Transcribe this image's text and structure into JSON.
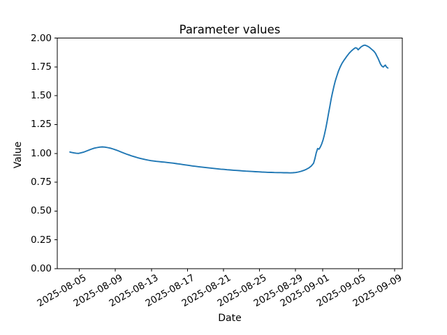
{
  "chart_data": {
    "type": "line",
    "title": "Parameter values",
    "xlabel": "Date",
    "ylabel": "Value",
    "x_unit": "days since 2025-08-01",
    "xlim": [
      1.55,
      39.85
    ],
    "ylim": [
      0.0,
      2.0
    ],
    "grid": false,
    "legend": null,
    "line_color": "#1f77b4",
    "x_ticks": [
      {
        "t": 4,
        "label": "2025-08-05"
      },
      {
        "t": 8,
        "label": "2025-08-09"
      },
      {
        "t": 12,
        "label": "2025-08-13"
      },
      {
        "t": 16,
        "label": "2025-08-17"
      },
      {
        "t": 20,
        "label": "2025-08-21"
      },
      {
        "t": 24,
        "label": "2025-08-25"
      },
      {
        "t": 28,
        "label": "2025-08-29"
      },
      {
        "t": 31,
        "label": "2025-09-01"
      },
      {
        "t": 35,
        "label": "2025-09-05"
      },
      {
        "t": 39,
        "label": "2025-09-09"
      }
    ],
    "y_ticks": [
      {
        "v": 0.0,
        "label": "0.00"
      },
      {
        "v": 0.25,
        "label": "0.25"
      },
      {
        "v": 0.5,
        "label": "0.50"
      },
      {
        "v": 0.75,
        "label": "0.75"
      },
      {
        "v": 1.0,
        "label": "1.00"
      },
      {
        "v": 1.25,
        "label": "1.25"
      },
      {
        "v": 1.5,
        "label": "1.50"
      },
      {
        "v": 1.75,
        "label": "1.75"
      },
      {
        "v": 2.0,
        "label": "2.00"
      }
    ],
    "series": [
      {
        "name": "parameter-values",
        "color": "#1f77b4",
        "line_width": 1.9,
        "points": [
          [
            2.95,
            1.012
          ],
          [
            3.15,
            1.008
          ],
          [
            3.4,
            1.004
          ],
          [
            3.65,
            1.001
          ],
          [
            3.9,
            1.0
          ],
          [
            4.15,
            1.004
          ],
          [
            4.45,
            1.01
          ],
          [
            4.75,
            1.019
          ],
          [
            5.05,
            1.028
          ],
          [
            5.35,
            1.037
          ],
          [
            5.65,
            1.045
          ],
          [
            5.95,
            1.05
          ],
          [
            6.25,
            1.054
          ],
          [
            6.55,
            1.056
          ],
          [
            6.85,
            1.054
          ],
          [
            7.15,
            1.05
          ],
          [
            7.45,
            1.045
          ],
          [
            7.75,
            1.038
          ],
          [
            8.05,
            1.03
          ],
          [
            8.35,
            1.021
          ],
          [
            8.65,
            1.011
          ],
          [
            8.95,
            1.002
          ],
          [
            9.25,
            0.993
          ],
          [
            9.55,
            0.985
          ],
          [
            9.85,
            0.977
          ],
          [
            10.15,
            0.97
          ],
          [
            10.45,
            0.963
          ],
          [
            10.75,
            0.957
          ],
          [
            11.05,
            0.951
          ],
          [
            11.35,
            0.946
          ],
          [
            11.65,
            0.941
          ],
          [
            11.95,
            0.937
          ],
          [
            12.25,
            0.934
          ],
          [
            12.55,
            0.931
          ],
          [
            12.85,
            0.928
          ],
          [
            13.15,
            0.926
          ],
          [
            13.45,
            0.924
          ],
          [
            13.75,
            0.921
          ],
          [
            14.1,
            0.918
          ],
          [
            14.45,
            0.915
          ],
          [
            14.8,
            0.911
          ],
          [
            15.15,
            0.907
          ],
          [
            15.5,
            0.903
          ],
          [
            15.85,
            0.899
          ],
          [
            16.2,
            0.895
          ],
          [
            16.55,
            0.891
          ],
          [
            16.9,
            0.888
          ],
          [
            17.25,
            0.884
          ],
          [
            17.6,
            0.881
          ],
          [
            17.95,
            0.878
          ],
          [
            18.3,
            0.875
          ],
          [
            18.65,
            0.872
          ],
          [
            19.0,
            0.869
          ],
          [
            19.35,
            0.866
          ],
          [
            19.7,
            0.863
          ],
          [
            20.05,
            0.861
          ],
          [
            20.4,
            0.858
          ],
          [
            20.75,
            0.856
          ],
          [
            21.1,
            0.854
          ],
          [
            21.45,
            0.852
          ],
          [
            21.8,
            0.85
          ],
          [
            22.15,
            0.848
          ],
          [
            22.5,
            0.846
          ],
          [
            22.85,
            0.845
          ],
          [
            23.2,
            0.843
          ],
          [
            23.55,
            0.841
          ],
          [
            23.9,
            0.84
          ],
          [
            24.25,
            0.838
          ],
          [
            24.6,
            0.837
          ],
          [
            24.95,
            0.836
          ],
          [
            25.3,
            0.835
          ],
          [
            25.65,
            0.834
          ],
          [
            26.0,
            0.833
          ],
          [
            26.35,
            0.833
          ],
          [
            26.7,
            0.832
          ],
          [
            27.05,
            0.832
          ],
          [
            27.4,
            0.831
          ],
          [
            27.7,
            0.832
          ],
          [
            28.0,
            0.834
          ],
          [
            28.3,
            0.838
          ],
          [
            28.6,
            0.844
          ],
          [
            28.9,
            0.852
          ],
          [
            29.2,
            0.862
          ],
          [
            29.5,
            0.875
          ],
          [
            29.75,
            0.89
          ],
          [
            30.0,
            0.915
          ],
          [
            30.15,
            0.955
          ],
          [
            30.3,
            1.005
          ],
          [
            30.45,
            1.042
          ],
          [
            30.6,
            1.036
          ],
          [
            30.75,
            1.055
          ],
          [
            30.9,
            1.082
          ],
          [
            31.05,
            1.115
          ],
          [
            31.2,
            1.16
          ],
          [
            31.35,
            1.215
          ],
          [
            31.5,
            1.275
          ],
          [
            31.65,
            1.34
          ],
          [
            31.8,
            1.405
          ],
          [
            31.95,
            1.47
          ],
          [
            32.1,
            1.525
          ],
          [
            32.25,
            1.578
          ],
          [
            32.4,
            1.625
          ],
          [
            32.55,
            1.662
          ],
          [
            32.75,
            1.71
          ],
          [
            32.95,
            1.748
          ],
          [
            33.15,
            1.78
          ],
          [
            33.4,
            1.81
          ],
          [
            33.7,
            1.843
          ],
          [
            33.95,
            1.868
          ],
          [
            34.2,
            1.888
          ],
          [
            34.45,
            1.905
          ],
          [
            34.65,
            1.916
          ],
          [
            34.8,
            1.912
          ],
          [
            34.95,
            1.898
          ],
          [
            35.1,
            1.91
          ],
          [
            35.25,
            1.922
          ],
          [
            35.4,
            1.93
          ],
          [
            35.55,
            1.936
          ],
          [
            35.7,
            1.938
          ],
          [
            35.85,
            1.934
          ],
          [
            36.0,
            1.929
          ],
          [
            36.15,
            1.922
          ],
          [
            36.3,
            1.913
          ],
          [
            36.5,
            1.899
          ],
          [
            36.7,
            1.885
          ],
          [
            36.87,
            1.868
          ],
          [
            37.0,
            1.848
          ],
          [
            37.15,
            1.825
          ],
          [
            37.3,
            1.798
          ],
          [
            37.45,
            1.772
          ],
          [
            37.6,
            1.755
          ],
          [
            37.75,
            1.749
          ],
          [
            37.87,
            1.76
          ],
          [
            37.97,
            1.765
          ],
          [
            38.07,
            1.752
          ],
          [
            38.17,
            1.744
          ],
          [
            38.25,
            1.74
          ]
        ]
      }
    ]
  }
}
